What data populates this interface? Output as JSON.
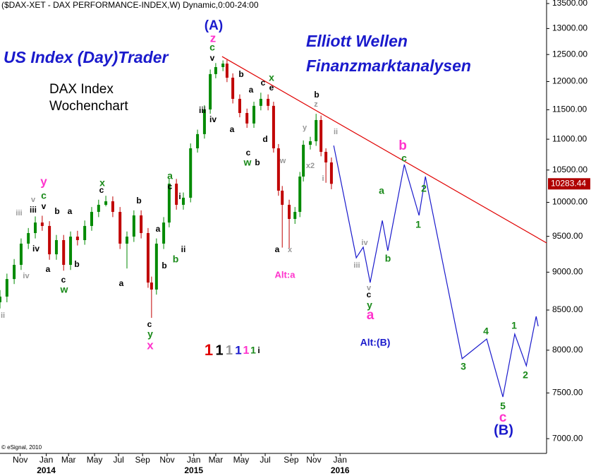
{
  "chart_data": {
    "type": "candlestick",
    "title": "($DAX-XET - DAX PERFORMANCE-INDEX,W) Dynamic,0:00-24:00",
    "texts": {
      "banner": "US Index (Day)Trader",
      "heading": [
        "Elliott Wellen",
        "Finanzmarktanalysen"
      ],
      "chart_label": [
        "DAX Index",
        "Wochenchart"
      ],
      "copyright": "© eSignal, 2010"
    },
    "y_scale": "log",
    "ylim": [
      6846,
      13572
    ],
    "yticks": [
      {
        "value": 13500,
        "label": "13500.00"
      },
      {
        "value": 13000,
        "label": "13000.00"
      },
      {
        "value": 12500,
        "label": "12500.00"
      },
      {
        "value": 12000,
        "label": "12000.00"
      },
      {
        "value": 11500,
        "label": "11500.00"
      },
      {
        "value": 11000,
        "label": "11000.00"
      },
      {
        "value": 10500,
        "label": "10500.00"
      },
      {
        "value": 10000,
        "label": "10000.00"
      },
      {
        "value": 9500,
        "label": "9500.00"
      },
      {
        "value": 9000,
        "label": "9000.00"
      },
      {
        "value": 8500,
        "label": "8500.00"
      },
      {
        "value": 8000,
        "label": "8000.00"
      },
      {
        "value": 7500,
        "label": "7500.00"
      },
      {
        "value": 7000,
        "label": "7000.00"
      }
    ],
    "xlim": [
      0,
      189
    ],
    "xticks": [
      {
        "value": 7,
        "label": "Nov"
      },
      {
        "value": 16,
        "label": "Jan"
      },
      {
        "value": 23.7,
        "label": "Mar"
      },
      {
        "value": 32.7,
        "label": "May"
      },
      {
        "value": 41,
        "label": "Jul"
      },
      {
        "value": 49.3,
        "label": "Sep"
      },
      {
        "value": 57.8,
        "label": "Nov"
      },
      {
        "value": 67,
        "label": "Jan"
      },
      {
        "value": 74.6,
        "label": "Mar"
      },
      {
        "value": 83.4,
        "label": "May"
      },
      {
        "value": 91.7,
        "label": "Jul"
      },
      {
        "value": 100.7,
        "label": "Sep"
      },
      {
        "value": 108.5,
        "label": "Nov"
      },
      {
        "value": 117.6,
        "label": "Jan"
      }
    ],
    "year_labels": [
      {
        "value": 16,
        "label": "2014"
      },
      {
        "value": 67,
        "label": "2015"
      },
      {
        "value": 117.6,
        "label": "2016"
      }
    ],
    "up_color": "#008a00",
    "down_color": "#c00000",
    "x": [
      0,
      2.4,
      4.9,
      7.3,
      9.8,
      12.2,
      14.6,
      17.1,
      19.5,
      22,
      24.4,
      26.8,
      29.3,
      31.7,
      34.1,
      36.6,
      39,
      41.5,
      43.9,
      46.3,
      48.8,
      51.2,
      52.4,
      54.1,
      56.6,
      58.5,
      61,
      63.4,
      65.9,
      68.3,
      70.7,
      72.7,
      74.6,
      77.1,
      78.5,
      80.5,
      82.9,
      85.4,
      87.8,
      90.2,
      92.7,
      94.6,
      96.3,
      97.6,
      100,
      102,
      103.7,
      104.9,
      107.3,
      109.3,
      111,
      112.7,
      114.6
    ],
    "open": [
      8600,
      8674,
      8907,
      9100,
      9396,
      9547,
      9700,
      9650,
      9246,
      9446,
      9100,
      9496,
      9446,
      9650,
      9857,
      9963,
      10016,
      9857,
      9396,
      9496,
      9805,
      9547,
      8860,
      8767,
      9396,
      9700,
      10286,
      9963,
      10070,
      10850,
      11085,
      11505,
      12136,
      12265,
      12330,
      12070,
      11691,
      11444,
      11264,
      11568,
      11691,
      11568,
      10850,
      10178,
      9963,
      9753,
      9857,
      10397,
      10908,
      10966,
      11323,
      10792,
      10621
    ],
    "high": [
      8760,
      8980,
      9180,
      9470,
      9620,
      9790,
      9800,
      9720,
      9520,
      9520,
      9570,
      9580,
      9730,
      9930,
      10040,
      10100,
      10090,
      9930,
      9570,
      9880,
      9880,
      9620,
      8940,
      9470,
      9780,
      10360,
      10360,
      10150,
      10930,
      11160,
      11580,
      12220,
      12340,
      12390,
      12400,
      12150,
      11770,
      11520,
      11640,
      11800,
      11770,
      11640,
      10920,
      10250,
      10040,
      9930,
      10470,
      10980,
      11040,
      11430,
      11400,
      10850,
      10700
    ],
    "low": [
      8520,
      8600,
      8840,
      9030,
      9320,
      9470,
      9580,
      9170,
      9170,
      9020,
      9030,
      9370,
      9380,
      9580,
      9780,
      9940,
      9780,
      9320,
      9050,
      9420,
      9470,
      8790,
      8400,
      8700,
      9320,
      9630,
      9890,
      9890,
      10000,
      10780,
      11010,
      11430,
      12060,
      12190,
      11990,
      11610,
      11370,
      11190,
      11190,
      11490,
      11490,
      10780,
      10100,
      9340,
      9330,
      9680,
      9780,
      10320,
      10830,
      10890,
      10720,
      10300,
      10200
    ],
    "close": [
      8674,
      8907,
      9100,
      9396,
      9547,
      9700,
      9650,
      9246,
      9446,
      9100,
      9496,
      9446,
      9650,
      9857,
      9963,
      10016,
      9857,
      9396,
      9496,
      9805,
      9547,
      8860,
      8767,
      9396,
      9700,
      10286,
      9963,
      10070,
      10850,
      11085,
      11505,
      12136,
      12265,
      12330,
      12070,
      11691,
      11444,
      11264,
      11568,
      11691,
      11568,
      10850,
      10178,
      9963,
      9753,
      9857,
      10397,
      10908,
      10966,
      11323,
      10792,
      10621,
      10283.44
    ],
    "last_value": 10283.44,
    "last_value_color": "#b00000",
    "trendline": {
      "x": [
        76.8,
        189
      ],
      "values": [
        12462,
        9406
      ],
      "color": "#e00000"
    },
    "projection": {
      "x": [
        115.4,
        123.2,
        125.6,
        128,
        132.2,
        134.1,
        139.8,
        144.9,
        147.1,
        159.8,
        168.3,
        173.9,
        178,
        182,
        185.4,
        186.1
      ],
      "values": [
        10895,
        9197,
        9346,
        8860,
        9730,
        9296,
        10587,
        9805,
        10397,
        7898,
        8136,
        7455,
        8197,
        7814,
        8419,
        8294
      ],
      "color": "#1a1acc"
    },
    "annotations": [
      {
        "color": "#1a1acc",
        "labels": [
          "(A)",
          "(B)",
          "Alt:(B)"
        ]
      },
      {
        "color": "#ff33cc",
        "labels": [
          "z",
          "y",
          "x",
          "b",
          "a",
          "c",
          "Alt:a"
        ]
      },
      {
        "color": "#1a8a1a",
        "labels": [
          "c",
          "x",
          "w",
          "a",
          "b",
          "y",
          "c",
          "x",
          "w",
          "c",
          "y",
          "a",
          "b",
          "1",
          "2",
          "3",
          "4",
          "5",
          "1",
          "2"
        ]
      },
      {
        "color": "#000000",
        "labels": [
          "v",
          "iii",
          "iv",
          "a",
          "b",
          "a",
          "b",
          "c",
          "c",
          "b",
          "a",
          "a",
          "c",
          "i",
          "ii",
          "b",
          "c",
          "v",
          "iii",
          "iv",
          "a",
          "b",
          "a",
          "c",
          "e",
          "b",
          "c",
          "d",
          "a",
          "b",
          "c"
        ]
      },
      {
        "color": "#999999",
        "labels": [
          "x2",
          "ii",
          "i",
          "z",
          "y",
          "w",
          "x",
          "iv",
          "iii",
          "v",
          "ii",
          "v",
          "iii",
          "iv"
        ]
      }
    ],
    "degree_legend": [
      {
        "text": "1",
        "color": "#e00000"
      },
      {
        "text": "1",
        "color": "#000000"
      },
      {
        "text": "1",
        "color": "#999999"
      },
      {
        "text": "1",
        "color": "#1a1acc"
      },
      {
        "text": "1",
        "color": "#ff33cc"
      },
      {
        "text": "1",
        "color": "#1a8a1a"
      },
      {
        "text": "i",
        "color": "#000000"
      }
    ]
  }
}
